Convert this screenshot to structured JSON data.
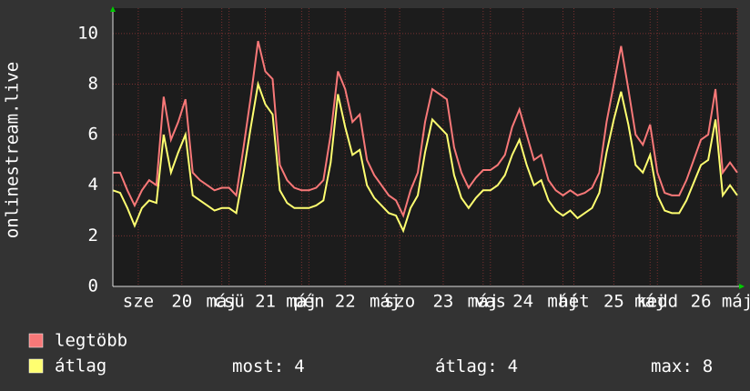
{
  "chart_data": {
    "type": "line",
    "ylabel": "onlinestream.live",
    "x": [
      0,
      2,
      4,
      6,
      8,
      10,
      12,
      14,
      16,
      18,
      20,
      22,
      24,
      26,
      28,
      30,
      32,
      34,
      36,
      38,
      40,
      42,
      44,
      46,
      48,
      50,
      52,
      54,
      56,
      58,
      60,
      62,
      64,
      66,
      68,
      70,
      72,
      74,
      76,
      78,
      80,
      82,
      84,
      86,
      88,
      90,
      92,
      94,
      96,
      98,
      100,
      102,
      104,
      106,
      108,
      110,
      112,
      114,
      116,
      118,
      120,
      122,
      124,
      126,
      128,
      130,
      132,
      134,
      136,
      138,
      140,
      142,
      144,
      146,
      148,
      150,
      152,
      154,
      156,
      158,
      160,
      162,
      164,
      166,
      168,
      170,
      172
    ],
    "series": [
      {
        "name": "legtöbb",
        "color": "#f87878",
        "values": [
          4.5,
          4.5,
          3.8,
          3.2,
          3.8,
          4.2,
          4.0,
          7.5,
          5.8,
          6.5,
          7.4,
          4.5,
          4.2,
          4.0,
          3.8,
          3.9,
          3.9,
          3.6,
          5.5,
          7.5,
          9.7,
          8.5,
          8.2,
          4.8,
          4.2,
          3.9,
          3.8,
          3.8,
          3.9,
          4.2,
          6.0,
          8.5,
          7.8,
          6.5,
          6.8,
          5.0,
          4.4,
          4.0,
          3.6,
          3.4,
          2.8,
          3.8,
          4.5,
          6.5,
          7.8,
          7.6,
          7.4,
          5.5,
          4.5,
          3.9,
          4.3,
          4.6,
          4.6,
          4.8,
          5.2,
          6.3,
          7.0,
          6.0,
          5.0,
          5.2,
          4.2,
          3.8,
          3.6,
          3.8,
          3.6,
          3.7,
          3.9,
          4.5,
          6.5,
          8.0,
          9.5,
          7.8,
          6.0,
          5.6,
          6.4,
          4.5,
          3.7,
          3.6,
          3.6,
          4.2,
          5.0,
          5.8,
          6.0,
          7.8,
          4.5,
          4.9,
          4.5
        ]
      },
      {
        "name": "átlag",
        "color": "#ffff70",
        "values": [
          3.8,
          3.7,
          3.1,
          2.4,
          3.1,
          3.4,
          3.3,
          6.0,
          4.5,
          5.3,
          6.0,
          3.6,
          3.4,
          3.2,
          3.0,
          3.1,
          3.1,
          2.9,
          4.5,
          6.3,
          8.0,
          7.2,
          6.8,
          3.8,
          3.3,
          3.1,
          3.1,
          3.1,
          3.2,
          3.4,
          4.9,
          7.6,
          6.3,
          5.2,
          5.4,
          4.0,
          3.5,
          3.2,
          2.9,
          2.8,
          2.2,
          3.1,
          3.6,
          5.3,
          6.6,
          6.3,
          6.0,
          4.4,
          3.5,
          3.1,
          3.5,
          3.8,
          3.8,
          4.0,
          4.4,
          5.2,
          5.8,
          4.8,
          4.0,
          4.2,
          3.4,
          3.0,
          2.8,
          3.0,
          2.7,
          2.9,
          3.1,
          3.7,
          5.3,
          6.6,
          7.7,
          6.4,
          4.8,
          4.5,
          5.2,
          3.6,
          3.0,
          2.9,
          2.9,
          3.4,
          4.1,
          4.8,
          5.0,
          6.6,
          3.6,
          4.0,
          3.6
        ]
      }
    ],
    "xlim": [
      0,
      172
    ],
    "xticks": [
      {
        "value": 7,
        "label": "sze"
      },
      {
        "value": 19,
        "label": "20"
      },
      {
        "value": 30,
        "label": "máj"
      },
      {
        "value": 32,
        "label": "csü"
      },
      {
        "value": 42,
        "label": "21"
      },
      {
        "value": 52,
        "label": "máj"
      },
      {
        "value": 54,
        "label": "pén"
      },
      {
        "value": 64,
        "label": "22"
      },
      {
        "value": 75,
        "label": "máj"
      },
      {
        "value": 79,
        "label": "szo"
      },
      {
        "value": 91,
        "label": "23"
      },
      {
        "value": 102,
        "label": "máj"
      },
      {
        "value": 104,
        "label": "vas"
      },
      {
        "value": 113,
        "label": "24"
      },
      {
        "value": 124,
        "label": "máj"
      },
      {
        "value": 127,
        "label": "hét"
      },
      {
        "value": 138,
        "label": "25"
      },
      {
        "value": 148,
        "label": "máj"
      },
      {
        "value": 150,
        "label": "kedd"
      },
      {
        "value": 162,
        "label": "26"
      },
      {
        "value": 172,
        "label": "máj"
      }
    ],
    "ylim": [
      0,
      11
    ],
    "yticks": [
      0,
      2,
      4,
      6,
      8,
      10
    ],
    "grid": true,
    "stats": [
      {
        "label": "most:",
        "value": 4
      },
      {
        "label": "átlag:",
        "value": 4
      },
      {
        "label": "max:",
        "value": 8
      }
    ]
  }
}
